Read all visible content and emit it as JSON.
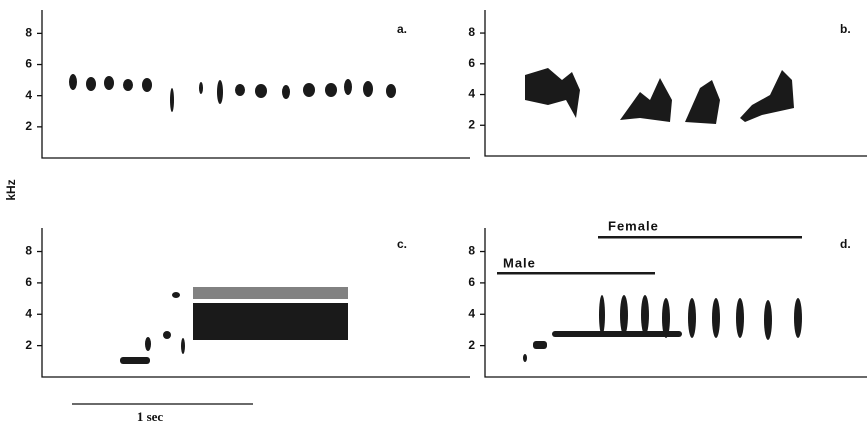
{
  "figure": {
    "y_axis_label": "kHz",
    "scale_bar_label": "1 sec",
    "panels": [
      {
        "label": "a.",
        "ylim": [
          0,
          9.5
        ],
        "yticks": [
          2,
          4,
          6,
          8
        ]
      },
      {
        "label": "b.",
        "ylim": [
          0,
          9.5
        ],
        "yticks": [
          2,
          4,
          6,
          8
        ]
      },
      {
        "label": "c.",
        "ylim": [
          0,
          9.5
        ],
        "yticks": [
          2,
          4,
          6,
          8
        ]
      },
      {
        "label": "d.",
        "ylim": [
          0,
          9.5
        ],
        "yticks": [
          2,
          4,
          6,
          8
        ],
        "annotations": [
          "Male",
          "Female"
        ]
      }
    ]
  }
}
